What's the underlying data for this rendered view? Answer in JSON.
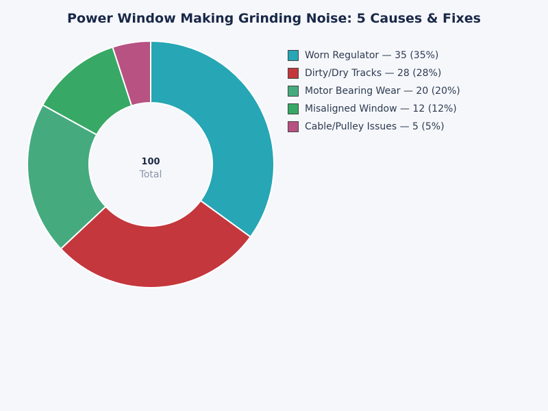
{
  "title": "Power Window Making Grinding Noise: 5 Causes & Fixes",
  "center": {
    "value": "100",
    "label": "Total"
  },
  "legend": [
    {
      "label": "Worn Regulator — 35 (35%)",
      "color": "#27a6b5"
    },
    {
      "label": "Dirty/Dry Tracks — 28 (28%)",
      "color": "#c4373d"
    },
    {
      "label": "Motor Bearing Wear — 20 (20%)",
      "color": "#45ab7f"
    },
    {
      "label": "Misaligned Window — 12 (12%)",
      "color": "#37a865"
    },
    {
      "label": "Cable/Pulley Issues — 5 (5%)",
      "color": "#b85283"
    }
  ],
  "chart_data": {
    "type": "pie",
    "subtype": "donut",
    "title": "Power Window Making Grinding Noise: 5 Causes & Fixes",
    "categories": [
      "Worn Regulator",
      "Dirty/Dry Tracks",
      "Motor Bearing Wear",
      "Misaligned Window",
      "Cable/Pulley Issues"
    ],
    "values": [
      35,
      28,
      20,
      12,
      5
    ],
    "percentages": [
      35,
      28,
      20,
      12,
      5
    ],
    "colors": [
      "#27a6b5",
      "#c4373d",
      "#45ab7f",
      "#37a865",
      "#b85283"
    ],
    "total": 100,
    "center_label": "Total",
    "legend_position": "right",
    "start_angle": "12 o'clock, clockwise"
  }
}
